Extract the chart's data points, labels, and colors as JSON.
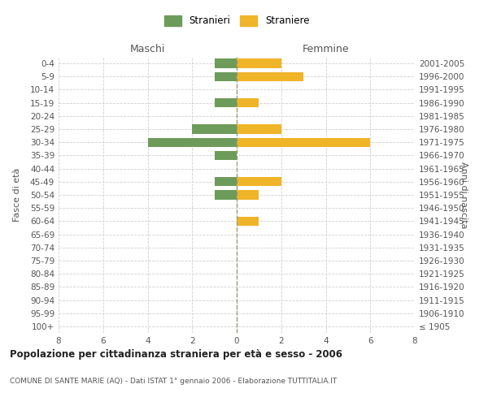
{
  "age_groups": [
    "100+",
    "95-99",
    "90-94",
    "85-89",
    "80-84",
    "75-79",
    "70-74",
    "65-69",
    "60-64",
    "55-59",
    "50-54",
    "45-49",
    "40-44",
    "35-39",
    "30-34",
    "25-29",
    "20-24",
    "15-19",
    "10-14",
    "5-9",
    "0-4"
  ],
  "birth_years": [
    "≤ 1905",
    "1906-1910",
    "1911-1915",
    "1916-1920",
    "1921-1925",
    "1926-1930",
    "1931-1935",
    "1936-1940",
    "1941-1945",
    "1946-1950",
    "1951-1955",
    "1956-1960",
    "1961-1965",
    "1966-1970",
    "1971-1975",
    "1976-1980",
    "1981-1985",
    "1986-1990",
    "1991-1995",
    "1996-2000",
    "2001-2005"
  ],
  "maschi": [
    0,
    0,
    0,
    0,
    0,
    0,
    0,
    0,
    0,
    0,
    1,
    1,
    0,
    1,
    4,
    2,
    0,
    1,
    0,
    1,
    1
  ],
  "femmine": [
    0,
    0,
    0,
    0,
    0,
    0,
    0,
    0,
    1,
    0,
    1,
    2,
    0,
    0,
    6,
    2,
    0,
    1,
    0,
    3,
    2
  ],
  "color_maschi": "#6d9b5a",
  "color_femmine": "#f0b429",
  "title": "Popolazione per cittadinanza straniera per età e sesso - 2006",
  "subtitle": "COMUNE DI SANTE MARIE (AQ) - Dati ISTAT 1° gennaio 2006 - Elaborazione TUTTITALIA.IT",
  "label_maschi": "Stranieri",
  "label_femmine": "Straniere",
  "xlabel_left": "Maschi",
  "xlabel_right": "Femmine",
  "ylabel_left": "Fasce di età",
  "ylabel_right": "Anni di nascita",
  "xlim": 8,
  "background_color": "#ffffff",
  "grid_color": "#d0d0d0"
}
